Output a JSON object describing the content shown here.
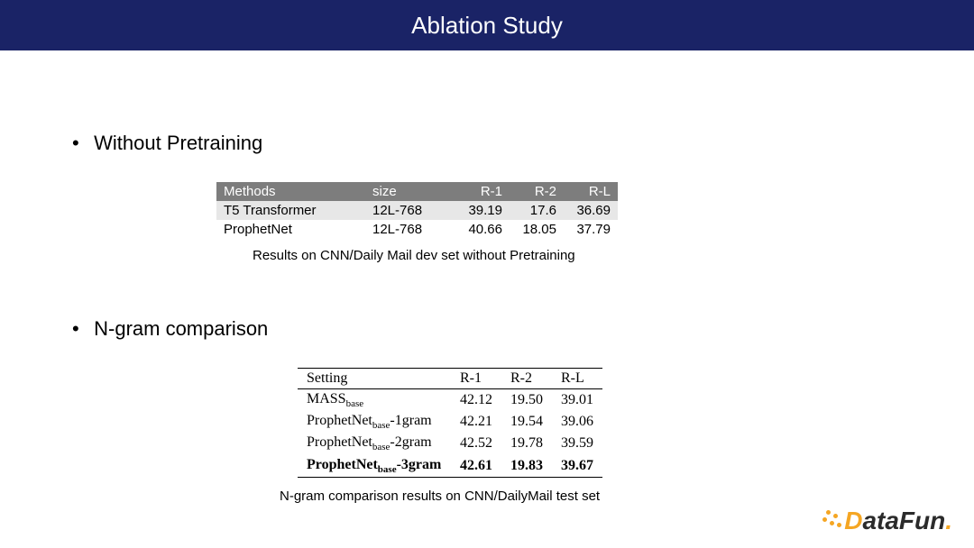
{
  "title": "Ablation Study",
  "section1": {
    "heading": "Without Pretraining",
    "table": {
      "columns": [
        "Methods",
        "size",
        "R-1",
        "R-2",
        "R-L"
      ],
      "rows": [
        [
          "T5 Transformer",
          "12L-768",
          "39.19",
          "17.6",
          "36.69"
        ],
        [
          "ProphetNet",
          "12L-768",
          "40.66",
          "18.05",
          "37.79"
        ]
      ],
      "header_bg": "#7d7d7d",
      "header_fg": "#ffffff",
      "row_alt_bg": "#e7e7e7"
    },
    "caption": "Results on CNN/Daily Mail dev set without Pretraining"
  },
  "section2": {
    "heading": "N-gram comparison",
    "table": {
      "columns": [
        "Setting",
        "R-1",
        "R-2",
        "R-L"
      ],
      "rows": [
        {
          "name": "MASS",
          "sub": "base",
          "suffix": "",
          "r1": "42.12",
          "r2": "19.50",
          "rl": "39.01",
          "bold": false
        },
        {
          "name": "ProphetNet",
          "sub": "base",
          "suffix": "-1gram",
          "r1": "42.21",
          "r2": "19.54",
          "rl": "39.06",
          "bold": false
        },
        {
          "name": "ProphetNet",
          "sub": "base",
          "suffix": "-2gram",
          "r1": "42.52",
          "r2": "19.78",
          "rl": "39.59",
          "bold": false
        },
        {
          "name": "ProphetNet",
          "sub": "base",
          "suffix": "-3gram",
          "r1": "42.61",
          "r2": "19.83",
          "rl": "39.67",
          "bold": true
        }
      ]
    },
    "caption": "N-gram comparison results on CNN/DailyMail test set"
  },
  "logo": {
    "part1": "D",
    "part2": "ataFun",
    "period": "."
  },
  "colors": {
    "title_bg": "#1a2366",
    "accent": "#f5a623",
    "text": "#000000",
    "logo_dark": "#2b2b2b"
  }
}
